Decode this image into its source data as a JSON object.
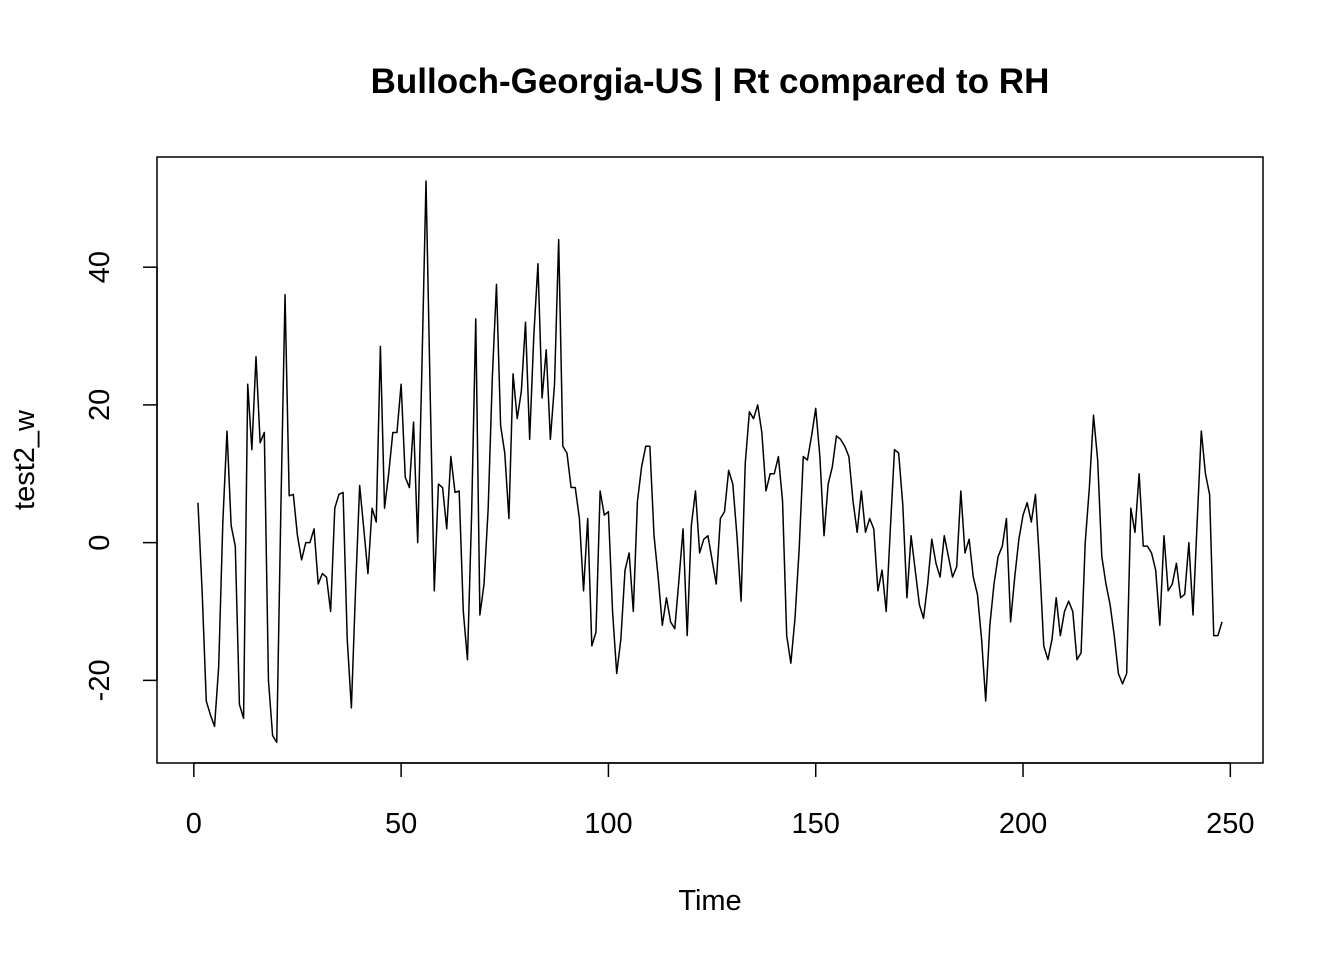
{
  "chart_data": {
    "type": "line",
    "title": "Bulloch-Georgia-US | Rt compared to RH",
    "xlabel": "Time",
    "ylabel": "test2_w",
    "xlim": [
      -8.88,
      257.88
    ],
    "ylim": [
      -32.0,
      56.0
    ],
    "x_ticks": [
      0,
      50,
      100,
      150,
      200,
      250
    ],
    "y_ticks": [
      -20,
      0,
      20,
      40
    ],
    "grid": false,
    "legend": "none",
    "line_color": "#000000",
    "x_start": 1,
    "y": [
      5.8,
      -7.0,
      -23.0,
      -25.0,
      -26.7,
      -18.0,
      3.0,
      16.2,
      2.5,
      -0.5,
      -23.5,
      -25.5,
      23.0,
      13.5,
      27.0,
      14.5,
      16.0,
      -20.0,
      -28.0,
      -29.0,
      5.0,
      36.0,
      6.8,
      7.0,
      1.0,
      -2.5,
      0.0,
      0.0,
      2.0,
      -6.0,
      -4.5,
      -5.0,
      -10.0,
      5.0,
      7.0,
      7.3,
      -14.0,
      -24.0,
      -7.0,
      8.3,
      2.0,
      -4.5,
      5.0,
      3.0,
      28.5,
      5.0,
      10.0,
      16.0,
      16.0,
      23.0,
      9.5,
      8.0,
      17.5,
      0.0,
      25.0,
      52.5,
      22.0,
      -7.0,
      8.5,
      8.0,
      2.0,
      12.5,
      7.3,
      7.5,
      -10.0,
      -17.0,
      4.0,
      32.5,
      -10.5,
      -6.0,
      5.0,
      24.0,
      37.5,
      17.0,
      13.0,
      3.5,
      24.5,
      18.0,
      22.0,
      32.0,
      15.0,
      30.0,
      40.5,
      21.0,
      28.0,
      15.0,
      23.0,
      44.0,
      14.0,
      13.0,
      8.0,
      8.0,
      3.5,
      -7.0,
      3.5,
      -15.0,
      -13.0,
      7.5,
      4.0,
      4.5,
      -10.0,
      -19.0,
      -14.0,
      -4.0,
      -1.5,
      -10.0,
      6.0,
      11.0,
      14.0,
      14.0,
      1.0,
      -5.0,
      -12.0,
      -8.0,
      -11.5,
      -12.5,
      -5.5,
      2.0,
      -13.5,
      2.5,
      7.5,
      -1.5,
      0.5,
      1.0,
      -2.5,
      -6.0,
      3.5,
      4.5,
      10.5,
      8.5,
      1.0,
      -8.5,
      11.5,
      19.0,
      18.0,
      20.0,
      16.0,
      7.5,
      10.0,
      10.0,
      12.5,
      6.0,
      -13.5,
      -17.5,
      -11.0,
      -1.0,
      12.5,
      12.0,
      15.5,
      19.5,
      12.5,
      1.0,
      8.5,
      11.0,
      15.5,
      15.0,
      14.0,
      12.5,
      6.0,
      1.5,
      7.5,
      1.5,
      3.5,
      2.0,
      -7.0,
      -4.0,
      -10.0,
      2.0,
      13.5,
      13.0,
      5.5,
      -8.0,
      1.0,
      -4.0,
      -9.0,
      -11.0,
      -6.0,
      0.5,
      -3.0,
      -5.0,
      1.0,
      -2.0,
      -5.0,
      -3.5,
      7.5,
      -1.5,
      0.5,
      -5.0,
      -7.5,
      -14.0,
      -23.0,
      -12.0,
      -6.0,
      -2.0,
      -0.5,
      3.5,
      -11.5,
      -5.0,
      0.5,
      4.0,
      5.8,
      3.0,
      7.0,
      -3.0,
      -15.0,
      -17.0,
      -14.0,
      -8.0,
      -13.5,
      -10.0,
      -8.5,
      -10.0,
      -17.0,
      -16.0,
      0.0,
      8.0,
      18.5,
      12.0,
      -2.0,
      -6.0,
      -9.0,
      -13.5,
      -19.0,
      -20.5,
      -19.0,
      5.0,
      1.5,
      10.0,
      -0.5,
      -0.5,
      -1.5,
      -4.0,
      -12.0,
      1.0,
      -7.0,
      -6.0,
      -3.0,
      -8.0,
      -7.5,
      0.0,
      -10.5,
      3.0,
      16.2,
      10.0,
      7.0,
      -13.5,
      -13.5,
      -11.5
    ]
  }
}
